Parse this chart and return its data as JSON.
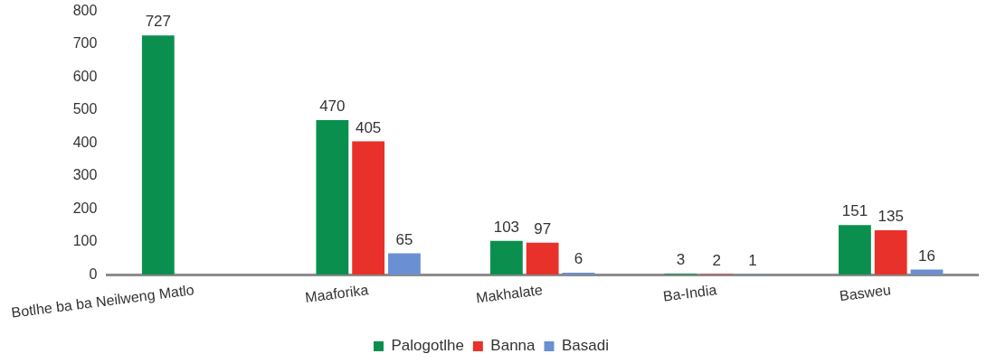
{
  "chart_data": {
    "type": "bar",
    "categories": [
      "Botlhe ba ba Neilweng Matlo",
      "Maaforika",
      "Makhalate",
      "Ba-India",
      "Basweu"
    ],
    "series": [
      {
        "name": "Palogotlhe",
        "color": "#0b8f4f",
        "values": [
          727,
          470,
          103,
          3,
          151
        ]
      },
      {
        "name": "Banna",
        "color": "#e8312a",
        "values": [
          null,
          405,
          97,
          2,
          135
        ]
      },
      {
        "name": "Basadi",
        "color": "#6a8fd2",
        "values": [
          null,
          65,
          6,
          1,
          16
        ]
      }
    ],
    "ylim": [
      0,
      800
    ],
    "yticks": [
      0,
      100,
      200,
      300,
      400,
      500,
      600,
      700,
      800
    ],
    "grid": false,
    "legend": "bottom",
    "data_labels": true
  }
}
